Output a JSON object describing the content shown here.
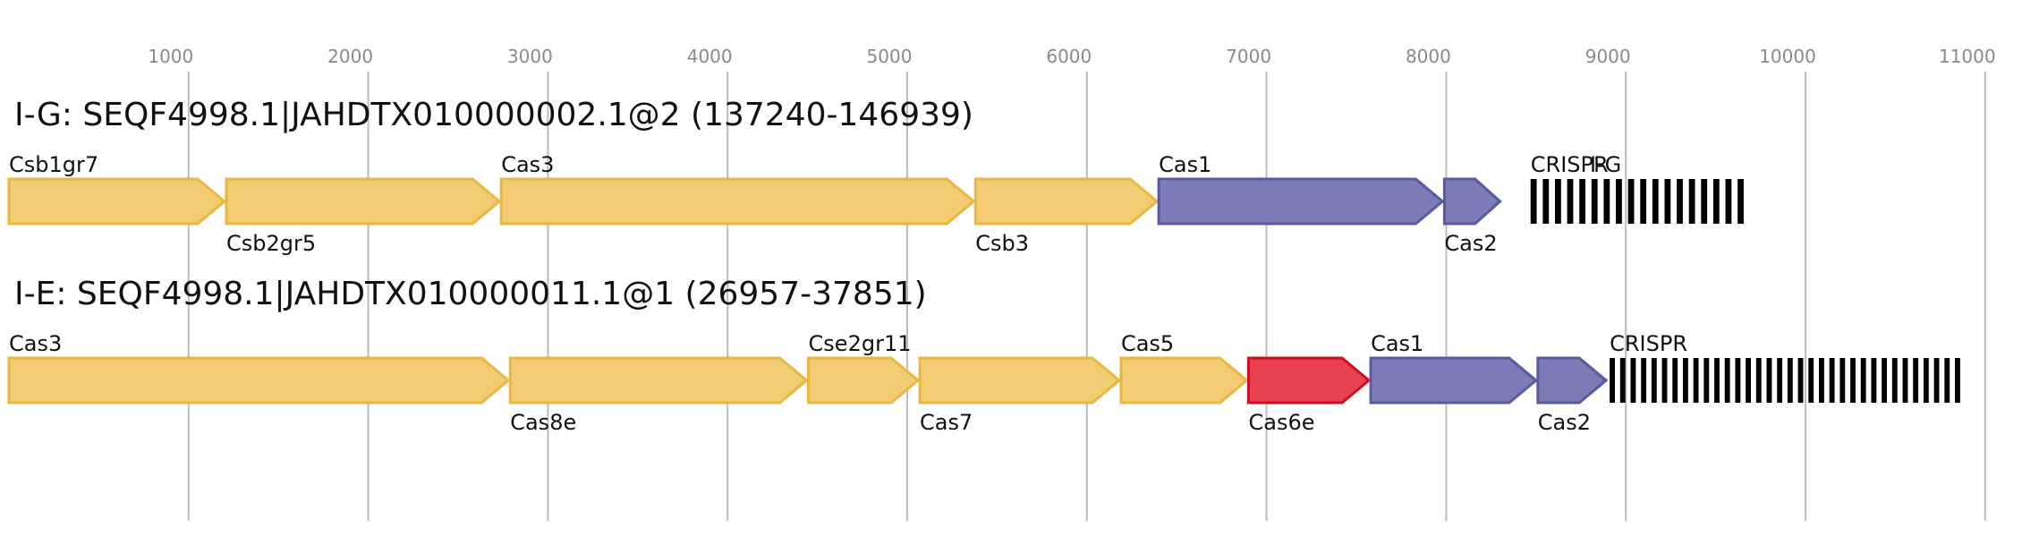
{
  "axis": {
    "ticks": [
      {
        "value": 1000,
        "label": "1000"
      },
      {
        "value": 2000,
        "label": "2000"
      },
      {
        "value": 3000,
        "label": "3000"
      },
      {
        "value": 4000,
        "label": "4000"
      },
      {
        "value": 5000,
        "label": "5000"
      },
      {
        "value": 6000,
        "label": "6000"
      },
      {
        "value": 7000,
        "label": "7000"
      },
      {
        "value": 8000,
        "label": "8000"
      },
      {
        "value": 9000,
        "label": "9000"
      },
      {
        "value": 10000,
        "label": "10000"
      },
      {
        "value": 11000,
        "label": "11000"
      }
    ],
    "grid": true
  },
  "colors": {
    "yellow_fill": "#f2cb73",
    "yellow_stroke": "#e8b840",
    "blue_fill": "#7b7bb8",
    "blue_stroke": "#5a5aa0",
    "red_fill": "#e84150",
    "red_stroke": "#cc1020",
    "crispr": "#000000"
  },
  "tracks": [
    {
      "title": "I-G: SEQF4998.1|JAHDTX010000002.1@2 (137240-146939)",
      "genes": [
        {
          "label": "Csb1gr7",
          "start": 0,
          "end": 1210,
          "color": "yellow",
          "label_pos": "above"
        },
        {
          "label": "Csb2gr5",
          "start": 1210,
          "end": 2740,
          "color": "yellow",
          "label_pos": "below"
        },
        {
          "label": "Cas3",
          "start": 2740,
          "end": 5380,
          "color": "yellow",
          "label_pos": "above"
        },
        {
          "label": "Csb3",
          "start": 5380,
          "end": 6400,
          "color": "yellow",
          "label_pos": "below"
        },
        {
          "label": "Cas1",
          "start": 6400,
          "end": 7990,
          "color": "blue",
          "label_pos": "above"
        },
        {
          "label": "Cas2",
          "start": 7990,
          "end": 8310,
          "color": "blue",
          "label_pos": "below"
        }
      ],
      "crispr": {
        "label": "CRISPR",
        "start": 8470,
        "end": 9690,
        "repeats": 18
      },
      "extra_label": {
        "text": "I-G",
        "position": 8800
      }
    },
    {
      "title": "I-E: SEQF4998.1|JAHDTX010000011.1@1 (26957-37851)",
      "genes": [
        {
          "label": "Cas3",
          "start": 0,
          "end": 2790,
          "color": "yellow",
          "label_pos": "above"
        },
        {
          "label": "Cas8e",
          "start": 2790,
          "end": 4450,
          "color": "yellow",
          "label_pos": "below"
        },
        {
          "label": "Cse2gr11",
          "start": 4450,
          "end": 5070,
          "color": "yellow",
          "label_pos": "above"
        },
        {
          "label": "Cas7",
          "start": 5070,
          "end": 6190,
          "color": "yellow",
          "label_pos": "below"
        },
        {
          "label": "Cas5",
          "start": 6190,
          "end": 6900,
          "color": "yellow",
          "label_pos": "above"
        },
        {
          "label": "Cas6e",
          "start": 6900,
          "end": 7580,
          "color": "red",
          "label_pos": "below"
        },
        {
          "label": "Cas1",
          "start": 7580,
          "end": 8510,
          "color": "blue",
          "label_pos": "above"
        },
        {
          "label": "Cas2",
          "start": 8510,
          "end": 8900,
          "color": "blue",
          "label_pos": "below"
        }
      ],
      "crispr": {
        "label": "CRISPR",
        "start": 8910,
        "end": 10890,
        "repeats": 34
      }
    }
  ]
}
